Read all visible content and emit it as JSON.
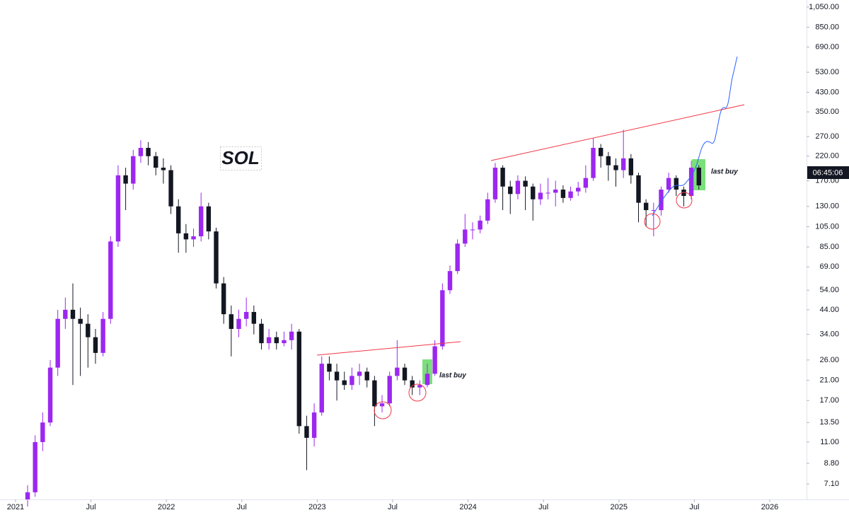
{
  "chart_data": {
    "type": "candlestick",
    "title": "SOL",
    "annotations": [
      "last buy",
      "last buy"
    ],
    "countdown": "06:45:06",
    "log_scale": true,
    "grid": false,
    "up_color": "#9c27f0",
    "down_color": "#131722",
    "x": [
      2021.08,
      2021.13,
      2021.18,
      2021.23,
      2021.28,
      2021.33,
      2021.38,
      2021.43,
      2021.48,
      2021.53,
      2021.58,
      2021.63,
      2021.68,
      2021.73,
      2021.78,
      2021.83,
      2021.88,
      2021.93,
      2021.98,
      2022.03,
      2022.08,
      2022.13,
      2022.18,
      2022.23,
      2022.28,
      2022.33,
      2022.38,
      2022.43,
      2022.48,
      2022.53,
      2022.58,
      2022.63,
      2022.68,
      2022.73,
      2022.78,
      2022.83,
      2022.88,
      2022.93,
      2022.98,
      2023.03,
      2023.08,
      2023.13,
      2023.18,
      2023.23,
      2023.28,
      2023.33,
      2023.38,
      2023.43,
      2023.48,
      2023.53,
      2023.58,
      2023.63,
      2023.68,
      2023.73,
      2023.78,
      2023.83,
      2023.88,
      2023.93,
      2023.98,
      2024.03,
      2024.08,
      2024.13,
      2024.18,
      2024.23,
      2024.28,
      2024.33,
      2024.38,
      2024.43,
      2024.48,
      2024.53,
      2024.58,
      2024.63,
      2024.68,
      2024.73,
      2024.78,
      2024.83,
      2024.88,
      2024.93,
      2024.98,
      2025.03,
      2025.08,
      2025.13,
      2025.18,
      2025.23,
      2025.28,
      2025.33,
      2025.38,
      2025.43,
      2025.48,
      2025.53
    ],
    "open": [
      6.0,
      6.5,
      11,
      13.5,
      24,
      40,
      44,
      40,
      38,
      33,
      28,
      40,
      90,
      180,
      165,
      220,
      240,
      220,
      195,
      190,
      130,
      98,
      92,
      95,
      130,
      100,
      58,
      42,
      36,
      40,
      43,
      38,
      31,
      33,
      31,
      32,
      35,
      13,
      11.5,
      15,
      25,
      23,
      21,
      20,
      22,
      23,
      21,
      16,
      16.5,
      22,
      24,
      21,
      19.5,
      20,
      22.5,
      30,
      54,
      66,
      88,
      102,
      102,
      112,
      140,
      195,
      160,
      148,
      170,
      160,
      140,
      150,
      150,
      155,
      142,
      152,
      158,
      175,
      240,
      220,
      200,
      190,
      215,
      180,
      135,
      125,
      125,
      155,
      175,
      155,
      145,
      195
    ],
    "high": [
      7.0,
      11.8,
      15,
      26,
      44,
      50,
      58,
      45,
      42,
      36,
      43,
      95,
      200,
      195,
      235,
      260,
      255,
      230,
      215,
      200,
      140,
      108,
      103,
      150,
      135,
      104,
      62,
      46,
      44,
      50,
      46,
      40,
      36,
      35,
      35,
      38,
      36,
      14.5,
      16.5,
      27,
      27,
      25,
      23,
      24,
      25,
      24,
      22,
      18,
      23,
      32,
      25,
      22,
      21,
      25,
      32,
      58,
      70,
      92,
      120,
      110,
      118,
      150,
      205,
      200,
      170,
      180,
      178,
      165,
      165,
      175,
      170,
      162,
      160,
      168,
      200,
      265,
      250,
      230,
      215,
      290,
      225,
      185,
      140,
      135,
      160,
      185,
      180,
      160,
      210,
      200
    ],
    "low": [
      5.6,
      6.2,
      10,
      13,
      22,
      36,
      20,
      22,
      24,
      25,
      27,
      38,
      85,
      125,
      155,
      205,
      200,
      180,
      165,
      120,
      80,
      80,
      85,
      90,
      92,
      55,
      38,
      27,
      33,
      37,
      34,
      29,
      29,
      29,
      30,
      29,
      12,
      8.2,
      10.5,
      14.5,
      21,
      17,
      19,
      19,
      20,
      19.5,
      13,
      15,
      16,
      21,
      20,
      18,
      18,
      19.5,
      22,
      29,
      52,
      64,
      85,
      92,
      98,
      108,
      135,
      125,
      120,
      140,
      125,
      112,
      132,
      140,
      130,
      135,
      138,
      145,
      150,
      170,
      195,
      170,
      160,
      175,
      165,
      110,
      105,
      95,
      118,
      150,
      145,
      130,
      140,
      155
    ],
    "close": [
      6.5,
      11,
      13.5,
      24,
      40,
      44,
      40,
      38,
      33,
      28,
      40,
      90,
      180,
      165,
      220,
      240,
      220,
      195,
      190,
      130,
      98,
      92,
      95,
      130,
      100,
      58,
      42,
      36,
      40,
      43,
      38,
      31,
      33,
      31,
      32,
      35,
      13,
      11.5,
      15,
      25,
      23,
      21,
      20,
      22,
      23,
      21,
      16,
      16.5,
      22,
      24,
      21,
      19.5,
      20,
      22.5,
      30,
      54,
      66,
      88,
      102,
      102,
      112,
      140,
      195,
      160,
      148,
      170,
      160,
      140,
      150,
      150,
      155,
      142,
      152,
      158,
      175,
      240,
      220,
      200,
      190,
      215,
      180,
      135,
      125,
      125,
      155,
      175,
      155,
      145,
      195,
      162
    ],
    "xlim": [
      2020.897,
      2026.244
    ],
    "xticks": [
      2021,
      {
        "value": 2021.5,
        "label": "Jul"
      },
      2022,
      {
        "value": 2022.5,
        "label": "Jul"
      },
      2023,
      {
        "value": 2023.5,
        "label": "Jul"
      },
      2024,
      {
        "value": 2024.5,
        "label": "Jul"
      },
      2025,
      {
        "value": 2025.5,
        "label": "Jul"
      },
      2026
    ],
    "ylim": [
      6.03,
      1130
    ],
    "yticks": [
      {
        "value": 1050,
        "label": "1,050.00"
      },
      {
        "value": 850,
        "label": "850.00"
      },
      {
        "value": 690,
        "label": "690.00"
      },
      {
        "value": 530,
        "label": "530.00"
      },
      {
        "value": 430,
        "label": "430.00"
      },
      {
        "value": 350,
        "label": "350.00"
      },
      {
        "value": 270,
        "label": "270.00"
      },
      {
        "value": 220,
        "label": "220.00"
      },
      {
        "value": 170,
        "label": "170.00"
      },
      {
        "value": 130,
        "label": "130.00"
      },
      {
        "value": 105,
        "label": "105.00"
      },
      {
        "value": 85,
        "label": "85.00"
      },
      {
        "value": 69,
        "label": "69.00"
      },
      {
        "value": 54,
        "label": "54.00"
      },
      {
        "value": 44,
        "label": "44.00"
      },
      {
        "value": 34,
        "label": "34.00"
      },
      {
        "value": 26,
        "label": "26.00"
      },
      {
        "value": 21,
        "label": "21.00"
      },
      {
        "value": 17,
        "label": "17.00"
      },
      {
        "value": 13.5,
        "label": "13.50"
      },
      {
        "value": 11,
        "label": "11.00"
      },
      {
        "value": 8.8,
        "label": "8.80"
      },
      {
        "value": 7.1,
        "label": "7.10"
      }
    ]
  }
}
